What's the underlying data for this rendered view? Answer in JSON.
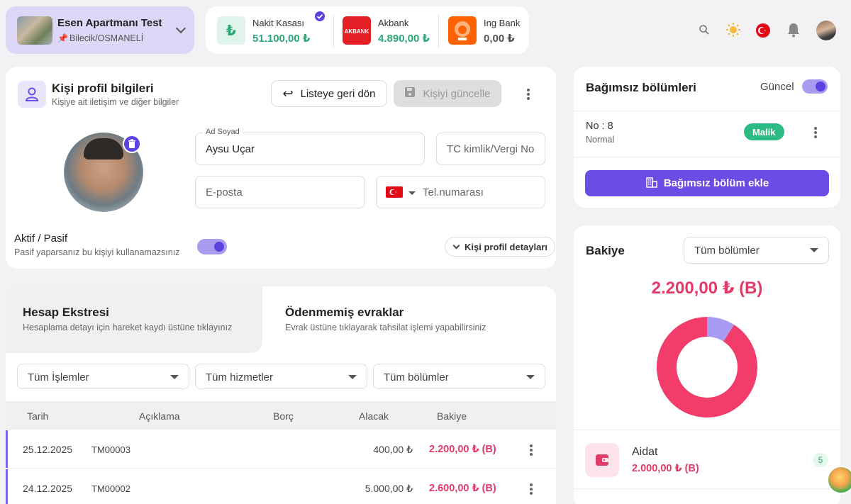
{
  "site": {
    "name": "Esen Apartmanı Test",
    "location": "Bilecik/OSMANELİ"
  },
  "accounts": [
    {
      "name": "Nakit Kasası",
      "value": "51.100,00 ₺",
      "verified": true,
      "logo": "lira-icon",
      "color": "#2aa876"
    },
    {
      "name": "Akbank",
      "value": "4.890,00 ₺",
      "logo_text": "AKBANK",
      "color": "#e31e24"
    },
    {
      "name": "Ing Bank",
      "value": "0,00 ₺",
      "color": "#ff6200"
    }
  ],
  "profile": {
    "title": "Kişi profil bilgileri",
    "subtitle": "Kişiye ait iletişim ve diğer bilgiler",
    "back_button": "Listeye geri dön",
    "update_button": "Kişiyi güncelle",
    "name_label": "Ad Soyad",
    "name_value": "Aysu Uçar",
    "tc_placeholder": "TC kimlik/Vergi No",
    "email_placeholder": "E-posta",
    "phone_placeholder": "Tel.numarası",
    "active_label": "Aktif / Pasif",
    "active_hint": "Pasif yaparsanız bu kişiyi kullanamazsınız",
    "details_button": "Kişi profil detayları"
  },
  "statement": {
    "tab1_title": "Hesap Ekstresi",
    "tab1_sub": "Hesaplama detayı için hareket kaydı üstüne tıklayınız",
    "tab2_title": "Ödenmemiş evraklar",
    "tab2_sub": "Evrak üstüne tıklayarak tahsilat işlemi yapabilirsiniz",
    "filters": [
      "Tüm İşlemler",
      "Tüm hizmetler",
      "Tüm bölümler"
    ],
    "columns": [
      "Tarih",
      "Açıklama",
      "Borç",
      "Alacak",
      "Bakiye"
    ],
    "rows": [
      {
        "date": "25.12.2025",
        "desc": "TM00003",
        "debt": "",
        "credit": "400,00 ₺",
        "balance": "2.200,00 ₺ (B)"
      },
      {
        "date": "24.12.2025",
        "desc": "TM00002",
        "debt": "",
        "credit": "5.000,00 ₺",
        "balance": "2.600,00 ₺ (B)"
      }
    ]
  },
  "units": {
    "title": "Bağımsız bölümleri",
    "toggle_label": "Güncel",
    "unit_no": "No : 8",
    "unit_type": "Normal",
    "unit_badge": "Malik",
    "add_button": "Bağımsız bölüm ekle"
  },
  "balance": {
    "title": "Bakiye",
    "filter": "Tüm bölümler",
    "total": "2.200,00 ₺ (B)",
    "item_name": "Aidat",
    "item_value": "2.000,00 ₺ (B)",
    "item_count": "5"
  },
  "chart_data": {
    "type": "pie",
    "categories": [
      "",
      ""
    ],
    "values": [
      91,
      9
    ],
    "colors": [
      "#f23d6b",
      "#a99bf3"
    ]
  }
}
